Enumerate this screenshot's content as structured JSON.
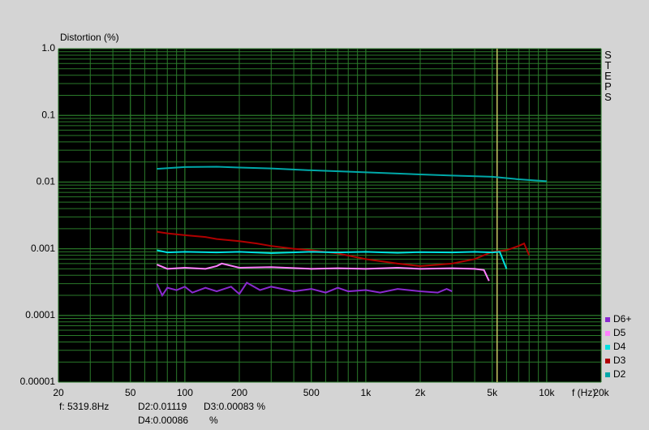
{
  "chart_data": {
    "type": "line",
    "y_label": "Distortion (%)",
    "x_label": "f (Hz)",
    "side_label": "STEPS",
    "xscale": "log",
    "yscale": "log",
    "grid": true,
    "minor_grid": true,
    "background": "#000000",
    "grid_color": "#2a7a2a",
    "xlim": [
      20,
      20000
    ],
    "ylim": [
      1e-05,
      1
    ],
    "xticks": [
      20,
      50,
      100,
      200,
      500,
      {
        "value": 1000,
        "label": "1k"
      },
      {
        "value": 2000,
        "label": "2k"
      },
      {
        "value": 5000,
        "label": "5k"
      },
      {
        "value": 10000,
        "label": "10k"
      },
      {
        "value": 20000,
        "label": "20k"
      }
    ],
    "yticks": [
      {
        "value": 1,
        "label": "1.0"
      },
      0.1,
      0.01,
      0.001,
      0.0001,
      1e-05
    ],
    "cursor": {
      "value": 5319.8,
      "label": "f: 5319.8Hz",
      "color": "#c8c864"
    },
    "readouts": [
      [
        "D2:0.01119",
        "D3:0.00083 %"
      ],
      [
        "D4:0.00086",
        "%"
      ]
    ],
    "legend": "bottom-right",
    "series": [
      {
        "name": "D2",
        "color": "#00a8a8",
        "x": [
          70,
          100,
          150,
          200,
          300,
          500,
          1000,
          2000,
          3000,
          5000,
          7000,
          10000
        ],
        "values": [
          0.0158,
          0.0168,
          0.017,
          0.0165,
          0.016,
          0.015,
          0.014,
          0.013,
          0.0125,
          0.012,
          0.011,
          0.0103
        ]
      },
      {
        "name": "D3",
        "color": "#b00000",
        "x": [
          70,
          80,
          100,
          130,
          150,
          200,
          250,
          300,
          400,
          500,
          700,
          1000,
          1500,
          2000,
          3000,
          4000,
          5000,
          6000,
          7000,
          7500,
          8000
        ],
        "values": [
          0.0018,
          0.0017,
          0.0016,
          0.0015,
          0.0014,
          0.0013,
          0.0012,
          0.0011,
          0.001,
          0.00095,
          0.00085,
          0.0007,
          0.0006,
          0.00055,
          0.0006,
          0.0007,
          0.0009,
          0.00095,
          0.0011,
          0.0012,
          0.0008
        ]
      },
      {
        "name": "D4",
        "color": "#00e0e0",
        "x": [
          70,
          80,
          100,
          150,
          200,
          300,
          500,
          700,
          1000,
          1500,
          2000,
          3000,
          4000,
          5000,
          5500,
          6000
        ],
        "values": [
          0.00095,
          0.00088,
          0.0009,
          0.00088,
          0.0009,
          0.00086,
          0.0009,
          0.00088,
          0.0009,
          0.00087,
          0.00089,
          0.00088,
          0.0009,
          0.00088,
          0.0009,
          0.0005
        ]
      },
      {
        "name": "D5",
        "color": "#ff80ff",
        "x": [
          70,
          80,
          100,
          130,
          150,
          160,
          200,
          300,
          500,
          700,
          1000,
          1500,
          2000,
          3000,
          4000,
          4500,
          4800
        ],
        "values": [
          0.00058,
          0.0005,
          0.00052,
          0.0005,
          0.00055,
          0.0006,
          0.00052,
          0.00053,
          0.0005,
          0.00051,
          0.0005,
          0.00052,
          0.0005,
          0.00051,
          0.0005,
          0.00048,
          0.00033
        ]
      },
      {
        "name": "D6+",
        "color": "#8a2ad0",
        "x": [
          70,
          75,
          80,
          90,
          100,
          110,
          130,
          150,
          180,
          200,
          220,
          260,
          300,
          400,
          500,
          600,
          700,
          800,
          1000,
          1200,
          1500,
          2000,
          2500,
          2800,
          3000
        ],
        "values": [
          0.0003,
          0.0002,
          0.00026,
          0.00024,
          0.00027,
          0.00022,
          0.00026,
          0.00023,
          0.00027,
          0.00021,
          0.00031,
          0.00024,
          0.00027,
          0.00023,
          0.00025,
          0.00022,
          0.00026,
          0.00023,
          0.00024,
          0.00022,
          0.00025,
          0.00023,
          0.00022,
          0.00025,
          0.00023
        ]
      }
    ]
  }
}
